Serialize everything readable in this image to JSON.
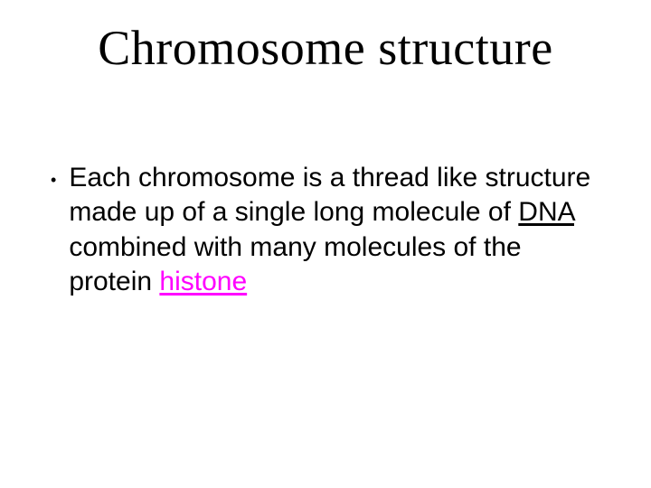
{
  "title": "Chromosome structure",
  "bullet": {
    "pre": "Each chromosome is a thread like structure made up of a single long molecule of ",
    "dna": "DNA",
    "mid": " combined with many molecules of the protein ",
    "histone": "histone"
  },
  "colors": {
    "highlight": "#ff00ff",
    "text": "#000000",
    "background": "#ffffff"
  },
  "fonts": {
    "title_family": "Times New Roman",
    "body_family": "Comic Sans MS",
    "title_size_pt": 40,
    "body_size_pt": 22
  }
}
